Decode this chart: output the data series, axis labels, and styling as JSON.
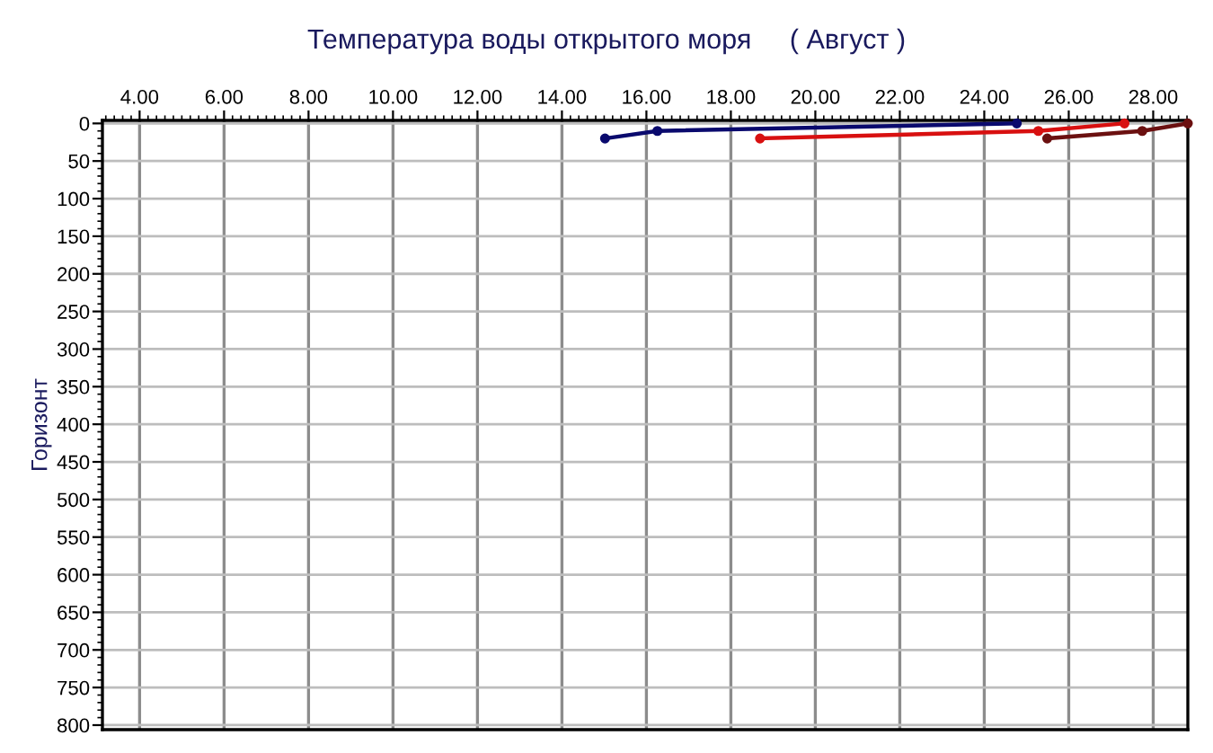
{
  "chart_data": {
    "type": "line",
    "title": "Температура воды открытого моря     ( Август )",
    "ylabel": "Горизонт",
    "series": [
      {
        "color": "#0a0a6e",
        "x": [
          15.02,
          16.26,
          24.77
        ],
        "values": [
          20,
          10,
          0
        ]
      },
      {
        "color": "#d81010",
        "x": [
          18.69,
          25.28,
          27.32
        ],
        "values": [
          20,
          10,
          0
        ]
      },
      {
        "color": "#6b1010",
        "x": [
          25.49,
          27.74,
          28.82
        ],
        "values": [
          20,
          10,
          0
        ]
      }
    ],
    "xlim": [
      3.12,
      28.82
    ],
    "ylim": [
      806,
      -4
    ],
    "xticks": [
      {
        "value": 4,
        "label": "4.00"
      },
      {
        "value": 6,
        "label": "6.00"
      },
      {
        "value": 8,
        "label": "8.00"
      },
      {
        "value": 10,
        "label": "10.00"
      },
      {
        "value": 12,
        "label": "12.00"
      },
      {
        "value": 14,
        "label": "14.00"
      },
      {
        "value": 16,
        "label": "16.00"
      },
      {
        "value": 18,
        "label": "18.00"
      },
      {
        "value": 20,
        "label": "20.00"
      },
      {
        "value": 22,
        "label": "22.00"
      },
      {
        "value": 24,
        "label": "24.00"
      },
      {
        "value": 26,
        "label": "26.00"
      },
      {
        "value": 28,
        "label": "28.00"
      }
    ],
    "yticks": [
      0,
      50,
      100,
      150,
      200,
      250,
      300,
      350,
      400,
      450,
      500,
      550,
      600,
      650,
      700,
      750,
      800
    ],
    "grid": true,
    "marker": "circle",
    "line_style": "solid",
    "legend": false
  }
}
